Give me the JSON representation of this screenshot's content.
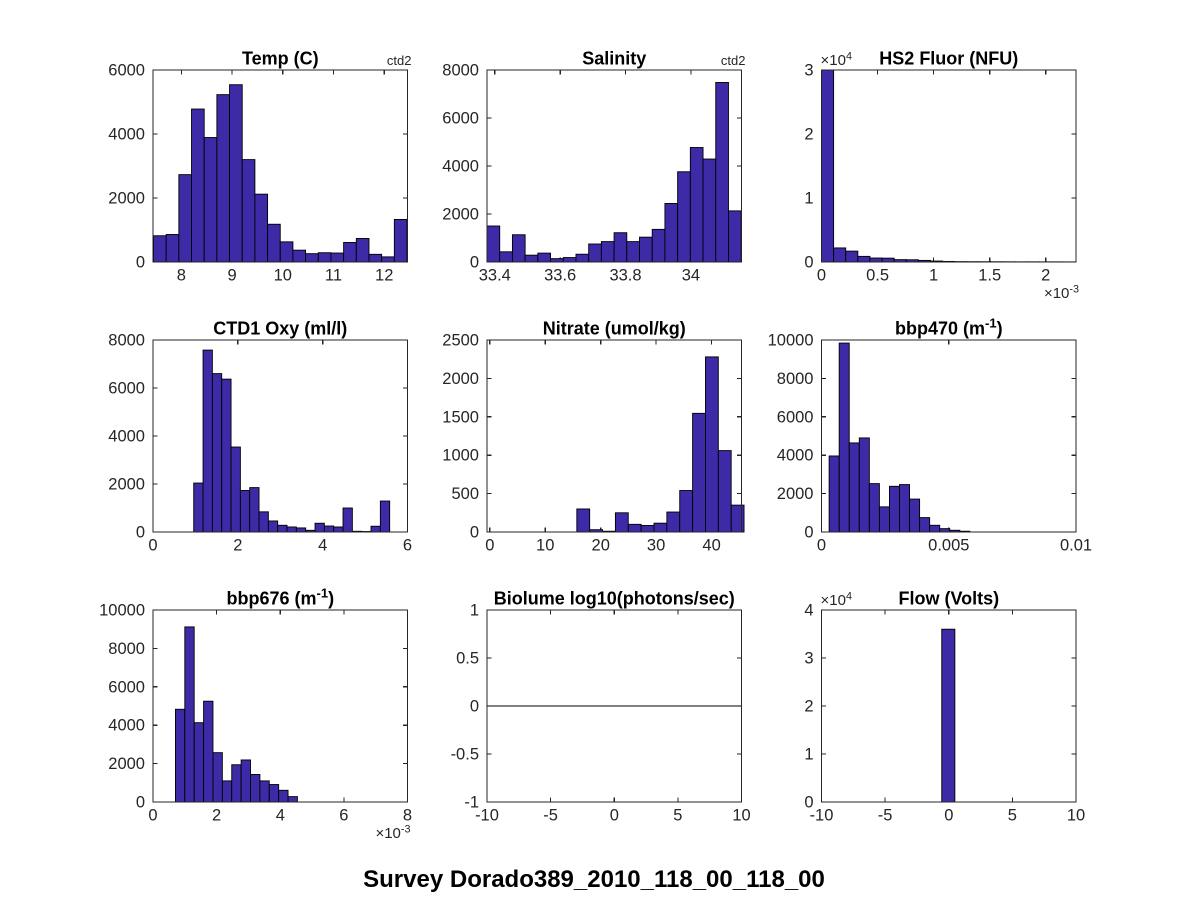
{
  "figure": {
    "title": "Survey Dorado389_2010_118_00_118_00",
    "background": "#ffffff",
    "bar_fill": "#3D2AA6",
    "bar_edge": "#000000",
    "axis_color": "#262626",
    "tick_color": "#262626",
    "title_color": "#000000"
  },
  "chart_data": [
    {
      "id": "temp",
      "type": "bar",
      "title": "Temp (C)",
      "annotation": "ctd2",
      "xlim": [
        7.44,
        12.46
      ],
      "ylim": [
        0,
        6000
      ],
      "xticks": [
        8,
        9,
        10,
        11,
        12
      ],
      "xtick_labels": [
        "8",
        "9",
        "10",
        "11",
        "12"
      ],
      "yticks": [
        0,
        2000,
        4000,
        6000
      ],
      "ytick_labels": [
        "0",
        "2000",
        "4000",
        "6000"
      ],
      "x_exponent": null,
      "y_exponent": null,
      "bins_start": 7.45,
      "bin_width": 0.25,
      "counts": [
        820,
        860,
        2730,
        4780,
        3890,
        5230,
        5540,
        3200,
        2120,
        1180,
        630,
        370,
        260,
        290,
        280,
        610,
        735,
        240,
        160,
        1330
      ],
      "zero_line": false
    },
    {
      "id": "salinity",
      "type": "bar",
      "title": "Salinity",
      "annotation": "ctd2",
      "xlim": [
        33.376,
        34.155
      ],
      "ylim": [
        0,
        8000
      ],
      "xticks": [
        33.4,
        33.6,
        33.8,
        34
      ],
      "xtick_labels": [
        "33.4",
        "33.6",
        "33.8",
        "34"
      ],
      "yticks": [
        0,
        2000,
        4000,
        6000,
        8000
      ],
      "ytick_labels": [
        "0",
        "2000",
        "4000",
        "6000",
        "8000"
      ],
      "x_exponent": null,
      "y_exponent": null,
      "bins_start": 33.376,
      "bin_width": 0.0389,
      "counts": [
        1500,
        425,
        1135,
        285,
        370,
        140,
        185,
        325,
        750,
        850,
        1220,
        850,
        1035,
        1360,
        2440,
        3760,
        4770,
        4290,
        7480,
        2130
      ],
      "zero_line": false
    },
    {
      "id": "hs2-fluor",
      "type": "bar",
      "title": "HS2 Fluor (NFU)",
      "annotation": null,
      "xlim": [
        0,
        0.00227
      ],
      "ylim": [
        0,
        30000
      ],
      "xticks": [
        0,
        0.0005,
        0.001,
        0.0015,
        0.002
      ],
      "xtick_labels": [
        "0",
        "0.5",
        "1",
        "1.5",
        "2"
      ],
      "yticks": [
        0,
        10000,
        20000,
        30000
      ],
      "ytick_labels": [
        "0",
        "1",
        "2",
        "3"
      ],
      "x_exponent": "×10^{-3}",
      "y_exponent": "×10^{4}",
      "bins_start": 0,
      "bin_width": 0.000108,
      "counts": [
        30000,
        2200,
        1700,
        880,
        620,
        600,
        370,
        350,
        250,
        150,
        90,
        60,
        50,
        45,
        40,
        35,
        30,
        30,
        25,
        25,
        20
      ],
      "zero_line": false
    },
    {
      "id": "ctd1-oxy",
      "type": "bar",
      "title": "CTD1 Oxy (ml/l)",
      "annotation": null,
      "xlim": [
        0,
        6
      ],
      "ylim": [
        0,
        8000
      ],
      "xticks": [
        0,
        2,
        4,
        6
      ],
      "xtick_labels": [
        "0",
        "2",
        "4",
        "6"
      ],
      "yticks": [
        0,
        2000,
        4000,
        6000,
        8000
      ],
      "ytick_labels": [
        "0",
        "2000",
        "4000",
        "6000",
        "8000"
      ],
      "x_exponent": null,
      "y_exponent": null,
      "bins_start": 0.96,
      "bin_width": 0.22,
      "counts": [
        2040,
        7580,
        6600,
        6370,
        3540,
        1730,
        1850,
        840,
        460,
        280,
        210,
        170,
        70,
        365,
        250,
        210,
        1000,
        30,
        20,
        240,
        1290
      ],
      "zero_line": false
    },
    {
      "id": "nitrate",
      "type": "bar",
      "title": "Nitrate (umol/kg)",
      "annotation": null,
      "xlim": [
        -0.5,
        45.4
      ],
      "ylim": [
        0,
        2500
      ],
      "xticks": [
        0,
        10,
        20,
        30,
        40
      ],
      "xtick_labels": [
        "0",
        "10",
        "20",
        "30",
        "40"
      ],
      "yticks": [
        0,
        500,
        1000,
        1500,
        2000,
        2500
      ],
      "ytick_labels": [
        "0",
        "500",
        "1000",
        "1500",
        "2000",
        "2500"
      ],
      "x_exponent": null,
      "y_exponent": null,
      "bins_start": 15.7,
      "bin_width": 2.32,
      "counts": [
        300,
        30,
        10,
        250,
        100,
        85,
        115,
        260,
        540,
        1545,
        2280,
        1060,
        350
      ],
      "zero_line": false
    },
    {
      "id": "bbp470",
      "type": "bar",
      "title": "bbp470 (m^{-1})",
      "annotation": null,
      "xlim": [
        0,
        0.01
      ],
      "ylim": [
        0,
        10000
      ],
      "xticks": [
        0,
        0.005,
        0.01
      ],
      "xtick_labels": [
        "0",
        "0.005",
        "0.01"
      ],
      "yticks": [
        0,
        2000,
        4000,
        6000,
        8000,
        10000
      ],
      "ytick_labels": [
        "0",
        "2000",
        "4000",
        "6000",
        "8000",
        "10000"
      ],
      "x_exponent": null,
      "y_exponent": null,
      "bins_start": 0.0003,
      "bin_width": 0.000395,
      "counts": [
        3960,
        9840,
        4640,
        4900,
        2520,
        1310,
        2380,
        2470,
        1715,
        750,
        350,
        175,
        90,
        40
      ],
      "zero_line": false
    },
    {
      "id": "bbp676",
      "type": "bar",
      "title": "bbp676 (m^{-1})",
      "annotation": null,
      "xlim": [
        0,
        0.008
      ],
      "ylim": [
        0,
        10000
      ],
      "xticks": [
        0,
        0.002,
        0.004,
        0.006,
        0.008
      ],
      "xtick_labels": [
        "0",
        "2",
        "4",
        "6",
        "8"
      ],
      "yticks": [
        0,
        2000,
        4000,
        6000,
        8000,
        10000
      ],
      "ytick_labels": [
        "0",
        "2000",
        "4000",
        "6000",
        "8000",
        "10000"
      ],
      "x_exponent": "×10^{-3}",
      "y_exponent": null,
      "bins_start": 0.000705,
      "bin_width": 0.000295,
      "counts": [
        4830,
        9120,
        4130,
        5250,
        2570,
        1100,
        1940,
        2190,
        1435,
        1100,
        910,
        610,
        280
      ],
      "zero_line": false
    },
    {
      "id": "biolume",
      "type": "bar",
      "title": "Biolume log10(photons/sec)",
      "annotation": null,
      "xlim": [
        -10,
        10
      ],
      "ylim": [
        -1,
        1
      ],
      "xticks": [
        -10,
        -5,
        0,
        5,
        10
      ],
      "xtick_labels": [
        "-10",
        "-5",
        "0",
        "5",
        "10"
      ],
      "yticks": [
        -1,
        -0.5,
        0,
        0.5,
        1
      ],
      "ytick_labels": [
        "-1",
        "-0.5",
        "0",
        "0.5",
        "1"
      ],
      "x_exponent": null,
      "y_exponent": null,
      "bins_start": 0,
      "bin_width": 1,
      "counts": [],
      "zero_line": true
    },
    {
      "id": "flow",
      "type": "bar",
      "title": "Flow (Volts)",
      "annotation": null,
      "xlim": [
        -10,
        10
      ],
      "ylim": [
        0,
        40000
      ],
      "xticks": [
        -10,
        -5,
        0,
        5,
        10
      ],
      "xtick_labels": [
        "-10",
        "-5",
        "0",
        "5",
        "10"
      ],
      "yticks": [
        0,
        10000,
        20000,
        30000,
        40000
      ],
      "ytick_labels": [
        "0",
        "1",
        "2",
        "3",
        "4"
      ],
      "x_exponent": null,
      "y_exponent": "×10^{4}",
      "bins_start": -0.55,
      "bin_width": 1.03,
      "counts": [
        36000
      ],
      "zero_line": false
    }
  ]
}
